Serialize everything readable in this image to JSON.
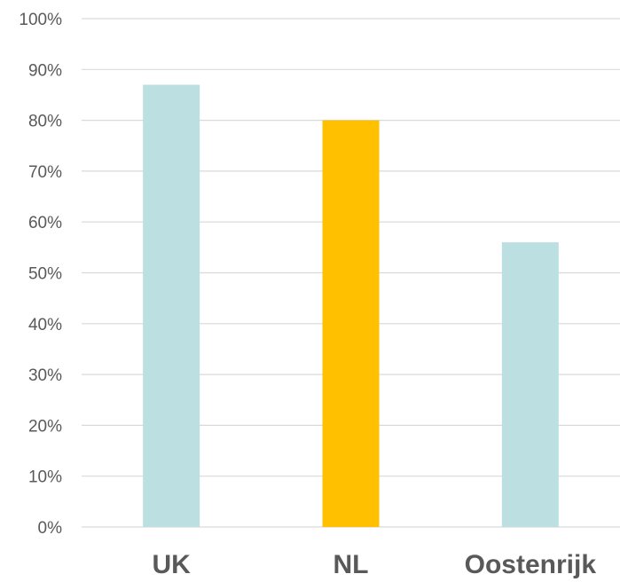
{
  "chart_data": {
    "type": "bar",
    "categories": [
      "UK",
      "NL",
      "Oostenrijk"
    ],
    "values": [
      0.87,
      0.8,
      0.56
    ],
    "bar_colors": [
      "#bcdfe2",
      "#ffc000",
      "#bcdfe2"
    ],
    "ylim": [
      0,
      1
    ],
    "y_ticks": [
      {
        "value": 0.0,
        "label": "0%"
      },
      {
        "value": 0.1,
        "label": "10%"
      },
      {
        "value": 0.2,
        "label": "20%"
      },
      {
        "value": 0.3,
        "label": "30%"
      },
      {
        "value": 0.4,
        "label": "40%"
      },
      {
        "value": 0.5,
        "label": "50%"
      },
      {
        "value": 0.6,
        "label": "60%"
      },
      {
        "value": 0.7,
        "label": "70%"
      },
      {
        "value": 0.8,
        "label": "80%"
      },
      {
        "value": 0.9,
        "label": "90%"
      },
      {
        "value": 1.0,
        "label": "100%"
      }
    ],
    "grid": true,
    "legend": "none",
    "title": "",
    "xlabel": "",
    "ylabel": ""
  }
}
